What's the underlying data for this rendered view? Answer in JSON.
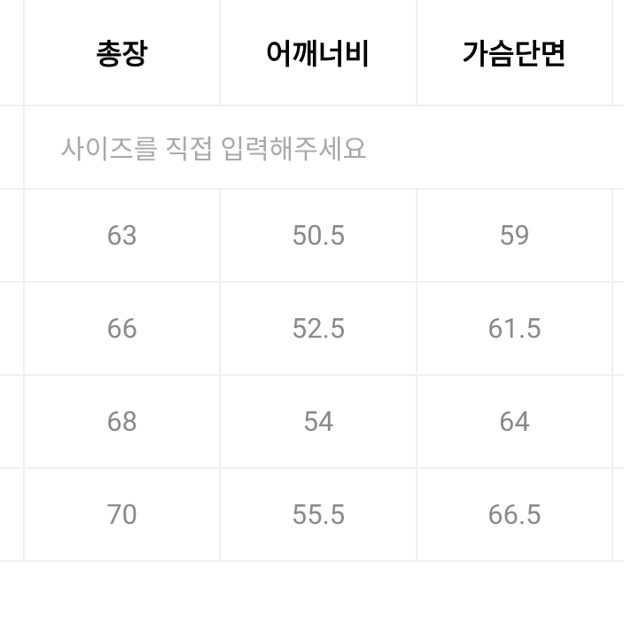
{
  "table": {
    "columns": [
      "총장",
      "어깨너비",
      "가슴단면"
    ],
    "input_placeholder": "사이즈를 직접 입력해주세요",
    "rows": [
      [
        "63",
        "50.5",
        "59"
      ],
      [
        "66",
        "52.5",
        "61.5"
      ],
      [
        "68",
        "54",
        "64"
      ],
      [
        "70",
        "55.5",
        "66.5"
      ]
    ],
    "colors": {
      "border": "#f0f0f0",
      "header_text": "#000000",
      "data_text": "#8a8a8a",
      "placeholder_text": "#a8a8a8",
      "background": "#ffffff"
    },
    "font_sizes": {
      "header": 32,
      "data": 31,
      "placeholder": 30
    },
    "font_weights": {
      "header": "700",
      "data": "400"
    }
  }
}
